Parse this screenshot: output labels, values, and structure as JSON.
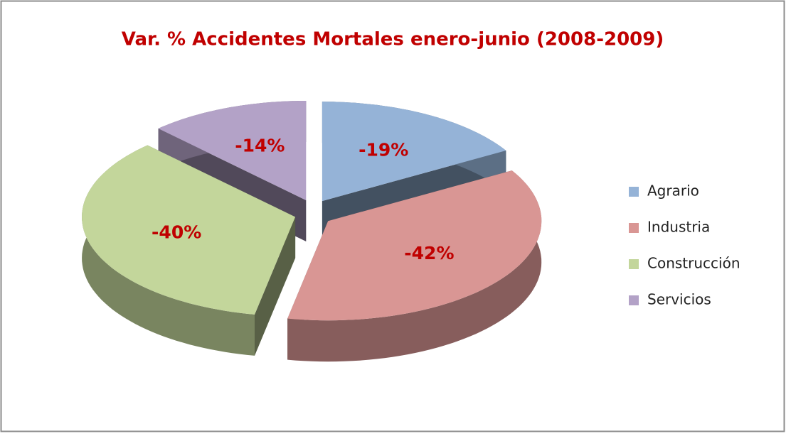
{
  "chart_data": {
    "type": "pie",
    "title": "Var. % Accidentes Mortales enero-junio (2008-2009)",
    "categories": [
      "Agrario",
      "Industria",
      "Construcción",
      "Servicios"
    ],
    "values": [
      -19,
      -42,
      -40,
      -14
    ],
    "value_labels": [
      "-19%",
      "-42%",
      "-40%",
      "-14%"
    ],
    "colors": [
      "#95b3d7",
      "#d99694",
      "#c3d69b",
      "#b3a2c7"
    ],
    "legend": "right"
  }
}
